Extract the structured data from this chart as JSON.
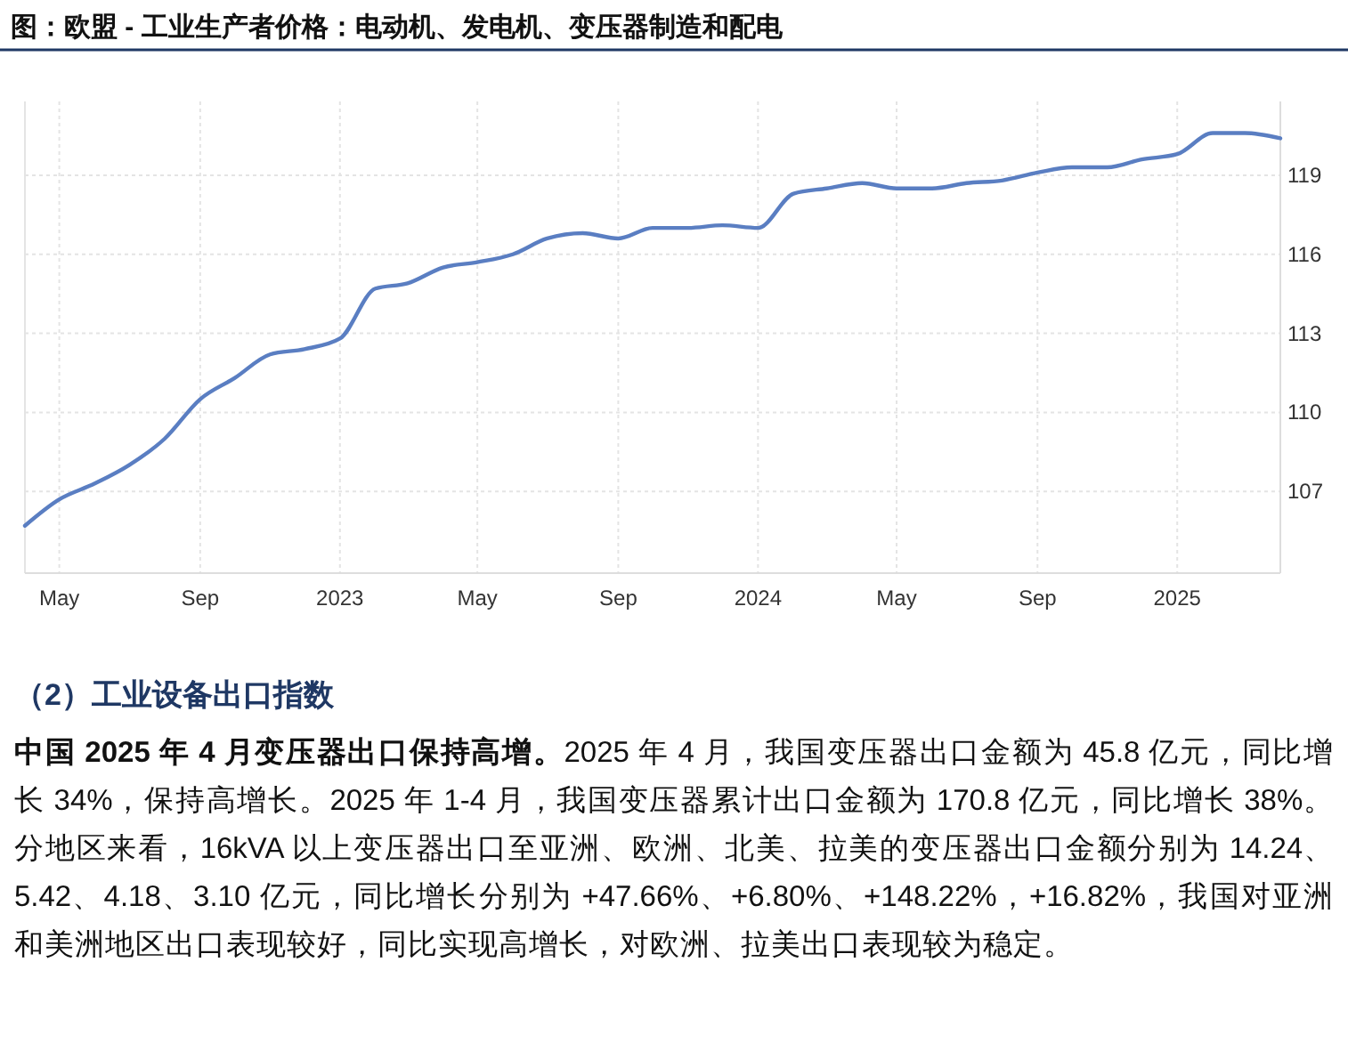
{
  "chart_data": {
    "type": "line",
    "title": "图：欧盟 - 工业生产者价格：电动机、发电机、变压器制造和配电",
    "x": [
      "2022-04",
      "2022-05",
      "2022-06",
      "2022-07",
      "2022-08",
      "2022-09",
      "2022-10",
      "2022-11",
      "2022-12",
      "2023-01",
      "2023-02",
      "2023-03",
      "2023-04",
      "2023-05",
      "2023-06",
      "2023-07",
      "2023-08",
      "2023-09",
      "2023-10",
      "2023-11",
      "2023-12",
      "2024-01",
      "2024-02",
      "2024-03",
      "2024-04",
      "2024-05",
      "2024-06",
      "2024-07",
      "2024-08",
      "2024-09",
      "2024-10",
      "2024-11",
      "2024-12",
      "2025-01",
      "2025-02",
      "2025-03",
      "2025-04"
    ],
    "series": [
      {
        "color": "#5a7ec2",
        "values": [
          105.7,
          106.7,
          107.3,
          108.0,
          109.0,
          110.5,
          111.3,
          112.2,
          112.4,
          112.8,
          114.7,
          114.9,
          115.5,
          115.7,
          116.0,
          116.6,
          116.8,
          116.6,
          117.0,
          117.0,
          117.1,
          117.0,
          118.3,
          118.5,
          118.7,
          118.5,
          118.5,
          118.7,
          118.8,
          119.1,
          119.3,
          119.3,
          119.6,
          119.8,
          120.6,
          120.6,
          120.4
        ]
      }
    ],
    "xlim": [
      "2022-04",
      "2025-04"
    ],
    "xticks": [
      {
        "value": "2022-05",
        "label": "May"
      },
      {
        "value": "2022-09",
        "label": "Sep"
      },
      {
        "value": "2023-01",
        "label": "2023"
      },
      {
        "value": "2023-05",
        "label": "May"
      },
      {
        "value": "2023-09",
        "label": "Sep"
      },
      {
        "value": "2024-01",
        "label": "2024"
      },
      {
        "value": "2024-05",
        "label": "May"
      },
      {
        "value": "2024-09",
        "label": "Sep"
      },
      {
        "value": "2025-01",
        "label": "2025"
      }
    ],
    "ylim": [
      103.9,
      121.8
    ],
    "yticks": [
      107,
      110,
      113,
      116,
      119
    ],
    "grid": true,
    "marker": "none",
    "line_style": "solid",
    "annotations": [
      "（2）工业设备出口指数",
      "中国 2025 年 4 月变压器出口保持高增。",
      "2025 年 4 月，我国变压器出口金额为 45.8 亿元，同比增长 34%，保持高增长。2025 年 1-4 月，我国变压器累计出口金额为 170.8 亿元，同比增长 38%。分地区来看，16kVA 以上变压器出口至亚洲、欧洲、北美、拉美的变压器出口金额分别为 14.24、5.42、4.18、3.10 亿元，同比增长分别为 +47.66%、+6.80%、+148.22%，+16.82%，我国对亚洲和美洲地区出口表现较好，同比实现高增长，对欧洲、拉美出口表现较为稳定。"
    ]
  }
}
